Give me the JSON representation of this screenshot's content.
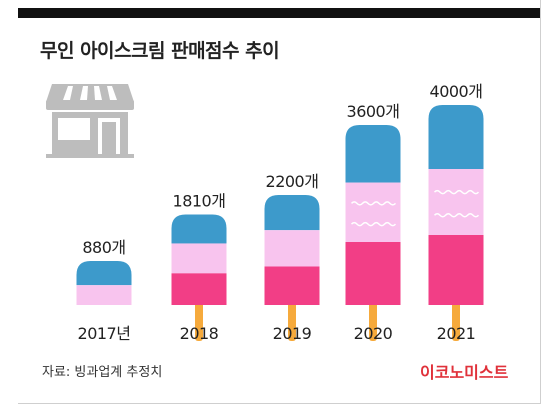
{
  "title": "무인 아이스크림 판매점수 추이",
  "source": "자료: 빙과업계 추정치",
  "brand": "이코노미스트",
  "colors": {
    "blue": "#3d9acb",
    "pink_light": "#f8c4ee",
    "pink_hot": "#f23e86",
    "stick": "#f6aa3c",
    "wave": "#ffffff",
    "brand": "#e0313a",
    "store_icon": "#bdbdbd"
  },
  "icon": "store-icon",
  "chart_data": {
    "type": "bar",
    "title": "무인 아이스크림 판매점수 추이",
    "categories": [
      "2017년",
      "2018",
      "2019",
      "2020",
      "2021"
    ],
    "values": [
      880,
      1810,
      2200,
      3600,
      4000
    ],
    "value_labels": [
      "880개",
      "1810개",
      "2200개",
      "3600개",
      "4000개"
    ],
    "ylim": [
      0,
      4000
    ],
    "grid": false,
    "legend": "none"
  }
}
